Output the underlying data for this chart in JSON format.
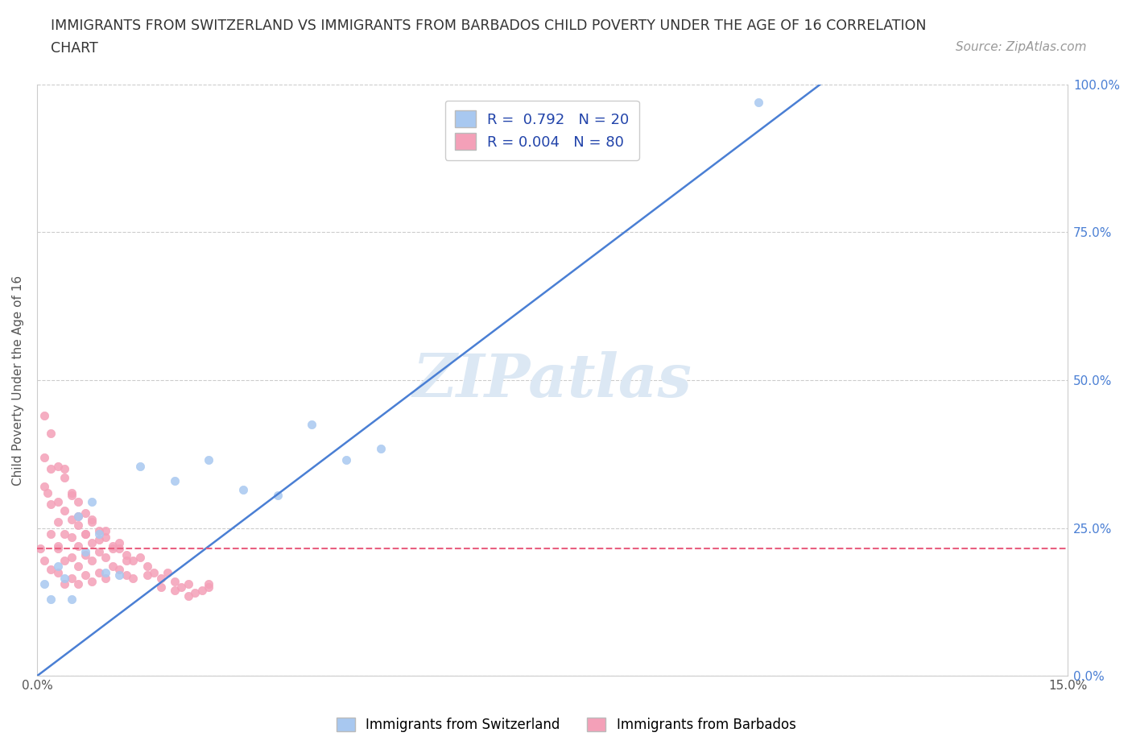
{
  "title_line1": "IMMIGRANTS FROM SWITZERLAND VS IMMIGRANTS FROM BARBADOS CHILD POVERTY UNDER THE AGE OF 16 CORRELATION",
  "title_line2": "CHART",
  "source_text": "Source: ZipAtlas.com",
  "ylabel": "Child Poverty Under the Age of 16",
  "xlim": [
    0.0,
    0.15
  ],
  "ylim": [
    0.0,
    1.0
  ],
  "xticks": [
    0.0,
    0.03,
    0.06,
    0.09,
    0.12,
    0.15
  ],
  "xticklabels": [
    "0.0%",
    "",
    "",
    "",
    "",
    "15.0%"
  ],
  "yticks": [
    0.0,
    0.25,
    0.5,
    0.75,
    1.0
  ],
  "yticklabels": [
    "0.0%",
    "25.0%",
    "50.0%",
    "75.0%",
    "100.0%"
  ],
  "switzerland_color": "#a8c8f0",
  "barbados_color": "#f4a0b8",
  "switzerland_line_color": "#4a7fd4",
  "barbados_line_color": "#e86080",
  "r_switzerland": 0.792,
  "n_switzerland": 20,
  "r_barbados": 0.004,
  "n_barbados": 80,
  "watermark": "ZIPatlas",
  "watermark_color": "#dce8f4",
  "legend_label_switzerland": "Immigrants from Switzerland",
  "legend_label_barbados": "Immigrants from Barbados",
  "swiss_line_x0": 0.0,
  "swiss_line_y0": 0.0,
  "swiss_line_x1": 0.114,
  "swiss_line_y1": 1.0,
  "barb_line_y": 0.215,
  "switzerland_x": [
    0.001,
    0.002,
    0.003,
    0.004,
    0.005,
    0.006,
    0.007,
    0.008,
    0.009,
    0.01,
    0.012,
    0.015,
    0.02,
    0.025,
    0.03,
    0.035,
    0.04,
    0.045,
    0.05,
    0.105
  ],
  "switzerland_y": [
    0.155,
    0.13,
    0.185,
    0.165,
    0.13,
    0.27,
    0.21,
    0.295,
    0.24,
    0.175,
    0.17,
    0.355,
    0.33,
    0.365,
    0.315,
    0.305,
    0.425,
    0.365,
    0.385,
    0.97
  ],
  "barbados_x": [
    0.0005,
    0.001,
    0.001,
    0.001,
    0.001,
    0.0015,
    0.002,
    0.002,
    0.002,
    0.002,
    0.002,
    0.003,
    0.003,
    0.003,
    0.003,
    0.003,
    0.004,
    0.004,
    0.004,
    0.004,
    0.004,
    0.005,
    0.005,
    0.005,
    0.005,
    0.005,
    0.006,
    0.006,
    0.006,
    0.006,
    0.006,
    0.007,
    0.007,
    0.007,
    0.007,
    0.008,
    0.008,
    0.008,
    0.008,
    0.009,
    0.009,
    0.009,
    0.01,
    0.01,
    0.01,
    0.011,
    0.011,
    0.012,
    0.012,
    0.013,
    0.013,
    0.014,
    0.014,
    0.015,
    0.016,
    0.017,
    0.018,
    0.019,
    0.02,
    0.021,
    0.022,
    0.023,
    0.024,
    0.025,
    0.003,
    0.004,
    0.005,
    0.006,
    0.007,
    0.008,
    0.009,
    0.01,
    0.011,
    0.012,
    0.013,
    0.016,
    0.018,
    0.02,
    0.022,
    0.025
  ],
  "barbados_y": [
    0.215,
    0.44,
    0.37,
    0.32,
    0.195,
    0.31,
    0.41,
    0.35,
    0.29,
    0.24,
    0.18,
    0.355,
    0.295,
    0.26,
    0.22,
    0.175,
    0.335,
    0.28,
    0.24,
    0.195,
    0.155,
    0.31,
    0.265,
    0.235,
    0.2,
    0.165,
    0.295,
    0.255,
    0.22,
    0.185,
    0.155,
    0.275,
    0.24,
    0.205,
    0.17,
    0.26,
    0.225,
    0.195,
    0.16,
    0.245,
    0.21,
    0.175,
    0.235,
    0.2,
    0.165,
    0.22,
    0.185,
    0.215,
    0.18,
    0.205,
    0.17,
    0.195,
    0.165,
    0.2,
    0.185,
    0.175,
    0.165,
    0.175,
    0.16,
    0.15,
    0.155,
    0.14,
    0.145,
    0.155,
    0.215,
    0.35,
    0.305,
    0.27,
    0.24,
    0.265,
    0.23,
    0.245,
    0.215,
    0.225,
    0.195,
    0.17,
    0.15,
    0.145,
    0.135,
    0.15
  ]
}
